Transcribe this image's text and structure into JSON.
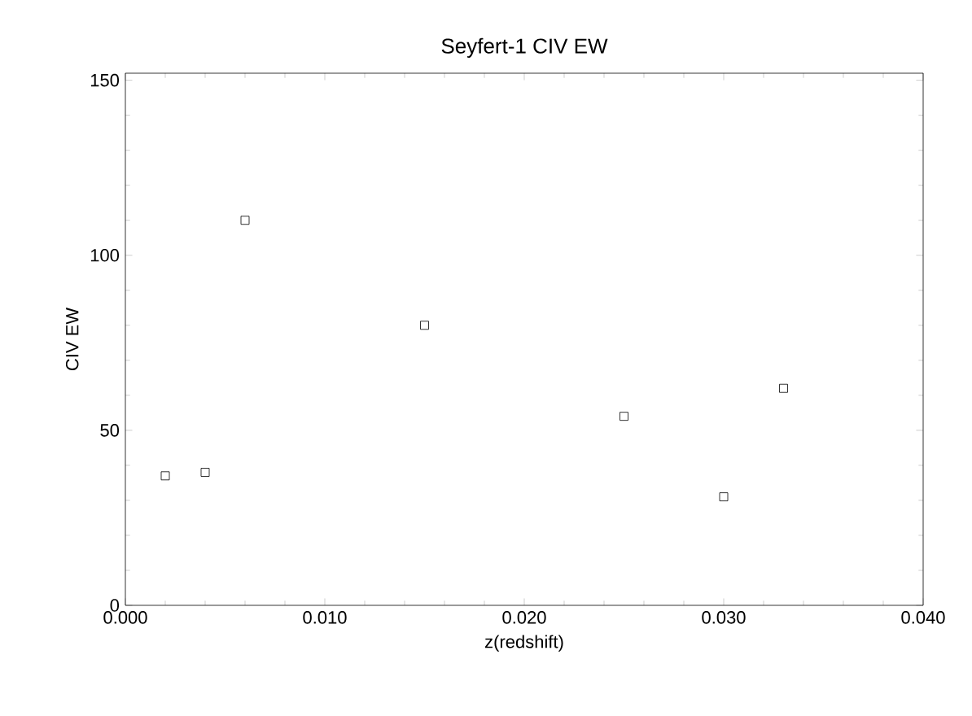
{
  "chart_data": {
    "type": "scatter",
    "title": "Seyfert-1 CIV EW",
    "xlabel": "z(redshift)",
    "ylabel": "CIV EW",
    "x": [
      0.002,
      0.004,
      0.006,
      0.015,
      0.025,
      0.03,
      0.033
    ],
    "values": [
      37,
      38,
      110,
      80,
      54,
      31,
      62
    ],
    "color": "#000000",
    "marker": "square",
    "grid": false,
    "xlim": [
      0,
      0.04
    ],
    "ylim": [
      0,
      152
    ],
    "xticks": [
      {
        "value": 0,
        "label": "0.000"
      },
      {
        "value": 0.01,
        "label": "0.010"
      },
      {
        "value": 0.02,
        "label": "0.020"
      },
      {
        "value": 0.03,
        "label": "0.030"
      },
      {
        "value": 0.04,
        "label": "0.040"
      }
    ],
    "yticks": [
      0,
      50,
      100,
      150
    ]
  }
}
